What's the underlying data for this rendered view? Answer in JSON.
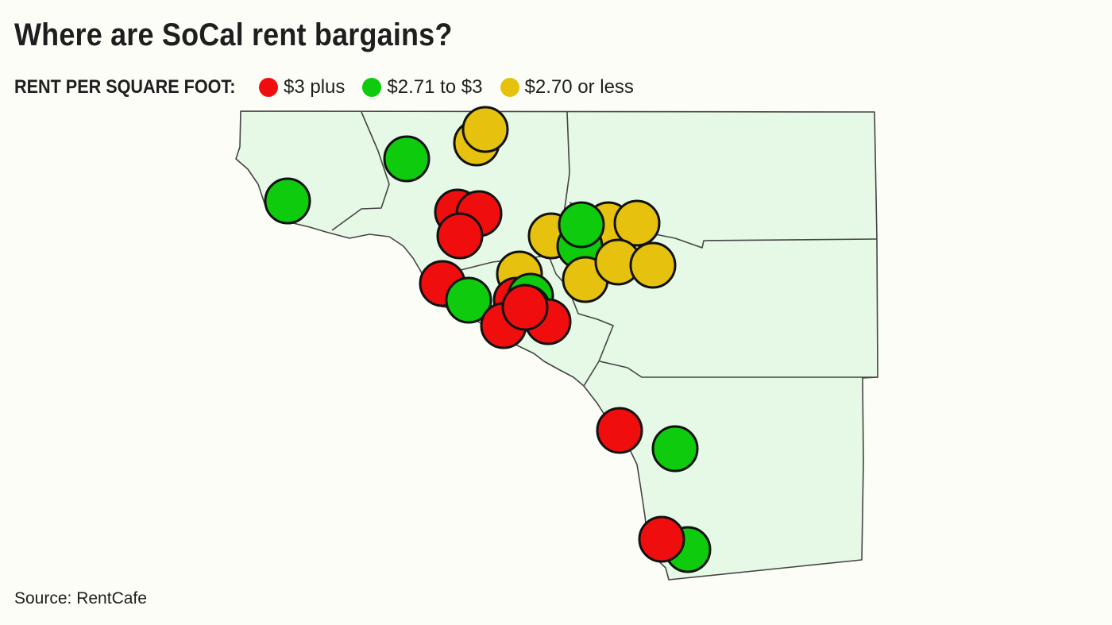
{
  "title": "Where are SoCal rent bargains?",
  "legend": {
    "label": "RENT PER SQUARE FOOT:",
    "items": [
      {
        "label": "$3 plus",
        "color": "#f00d0d"
      },
      {
        "label": "$2.71 to $3",
        "color": "#0ecb0e"
      },
      {
        "label": "$2.70 or less",
        "color": "#e6c20e"
      }
    ]
  },
  "map_colors": {
    "land": "#e6f9e6",
    "border": "#444444",
    "marker_outline": "#111111"
  },
  "markers": [
    {
      "category": "$2.70 or less"
    },
    {
      "category": "$2.70 or less"
    },
    {
      "category": "$2.71 to $3"
    },
    {
      "category": "$2.71 to $3"
    },
    {
      "category": "$3 plus"
    },
    {
      "category": "$3 plus"
    },
    {
      "category": "$3 plus"
    },
    {
      "category": "$2.70 or less"
    },
    {
      "category": "$2.70 or less"
    },
    {
      "category": "$2.70 or less"
    },
    {
      "category": "$2.71 to $3"
    },
    {
      "category": "$2.71 to $3"
    },
    {
      "category": "$2.70 or less"
    },
    {
      "category": "$2.70 or less"
    },
    {
      "category": "$2.70 or less"
    },
    {
      "category": "$2.70 or less"
    },
    {
      "category": "$3 plus"
    },
    {
      "category": "$2.71 to $3"
    },
    {
      "category": "$3 plus"
    },
    {
      "category": "$2.71 to $3"
    },
    {
      "category": "$2.71 to $3"
    },
    {
      "category": "$3 plus"
    },
    {
      "category": "$3 plus"
    },
    {
      "category": "$3 plus"
    },
    {
      "category": "$3 plus"
    },
    {
      "category": "$2.71 to $3"
    },
    {
      "category": "$2.71 to $3"
    },
    {
      "category": "$3 plus"
    }
  ],
  "source": "Source: RentCafe"
}
